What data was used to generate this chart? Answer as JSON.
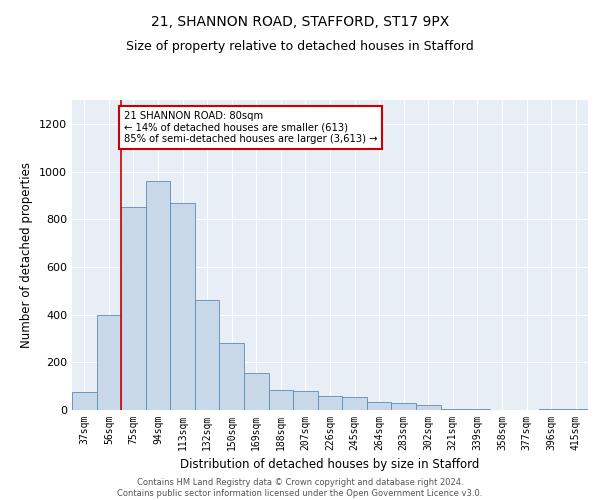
{
  "title1": "21, SHANNON ROAD, STAFFORD, ST17 9PX",
  "title2": "Size of property relative to detached houses in Stafford",
  "xlabel": "Distribution of detached houses by size in Stafford",
  "ylabel": "Number of detached properties",
  "categories": [
    "37sqm",
    "56sqm",
    "75sqm",
    "94sqm",
    "113sqm",
    "132sqm",
    "150sqm",
    "169sqm",
    "188sqm",
    "207sqm",
    "226sqm",
    "245sqm",
    "264sqm",
    "283sqm",
    "302sqm",
    "321sqm",
    "339sqm",
    "358sqm",
    "377sqm",
    "396sqm",
    "415sqm"
  ],
  "values": [
    75,
    400,
    850,
    960,
    870,
    460,
    280,
    155,
    85,
    80,
    60,
    55,
    35,
    30,
    20,
    5,
    3,
    0,
    0,
    5,
    5
  ],
  "bar_color": "#c8d8e8",
  "bar_edge_color": "#5b8db8",
  "annotation_text": "21 SHANNON ROAD: 80sqm\n← 14% of detached houses are smaller (613)\n85% of semi-detached houses are larger (3,613) →",
  "annotation_box_color": "#ffffff",
  "annotation_box_edge": "#cc0000",
  "vline_x": 1.5,
  "vline_color": "#cc0000",
  "ylim": [
    0,
    1300
  ],
  "yticks": [
    0,
    200,
    400,
    600,
    800,
    1000,
    1200
  ],
  "background_color": "#e8eef5",
  "footer": "Contains HM Land Registry data © Crown copyright and database right 2024.\nContains public sector information licensed under the Open Government Licence v3.0.",
  "title1_fontsize": 10,
  "title2_fontsize": 9,
  "xlabel_fontsize": 8.5,
  "ylabel_fontsize": 8.5,
  "footer_fontsize": 6.0
}
